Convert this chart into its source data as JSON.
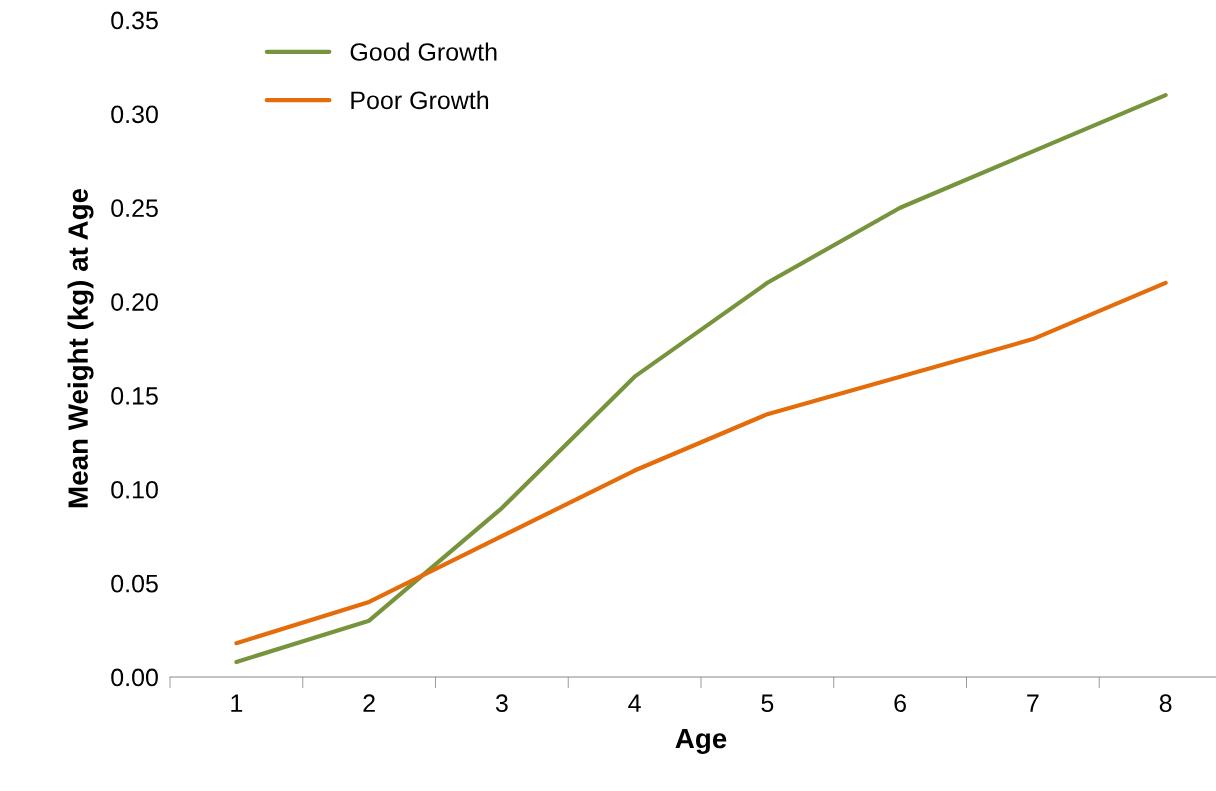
{
  "chart_data": {
    "type": "line",
    "xlabel": "Age",
    "ylabel": "Mean Weight (kg) at Age",
    "categories": [
      "1",
      "2",
      "3",
      "4",
      "5",
      "6",
      "7",
      "8"
    ],
    "series": [
      {
        "name": "Good Growth",
        "color": "#77933c",
        "values": [
          0.008,
          0.03,
          0.09,
          0.16,
          0.21,
          0.25,
          0.28,
          0.31
        ]
      },
      {
        "name": "Poor Growth",
        "color": "#e46c0a",
        "values": [
          0.018,
          0.04,
          0.075,
          0.11,
          0.14,
          0.16,
          0.18,
          0.21
        ]
      }
    ],
    "ylim": [
      0,
      0.35
    ],
    "yticks": [
      {
        "value": 0,
        "label": "0.00"
      },
      {
        "value": 0.05,
        "label": "0.05"
      },
      {
        "value": 0.1,
        "label": "0.10"
      },
      {
        "value": 0.15,
        "label": "0.15"
      },
      {
        "value": 0.2,
        "label": "0.20"
      },
      {
        "value": 0.25,
        "label": "0.25"
      },
      {
        "value": 0.3,
        "label": "0.30"
      },
      {
        "value": 0.35,
        "label": "0.35"
      }
    ],
    "grid": false,
    "legend": "top left",
    "marker": "none",
    "line_style": "solid"
  }
}
